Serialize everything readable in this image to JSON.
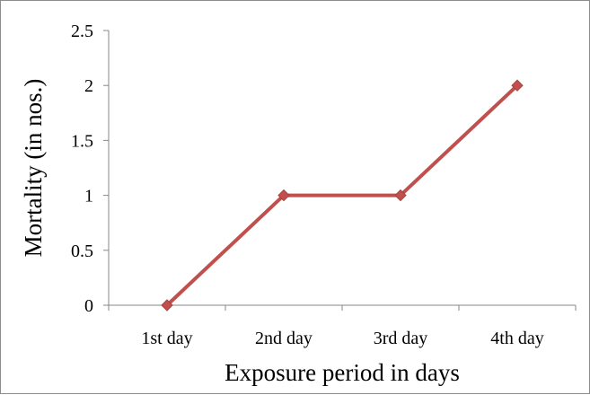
{
  "chart_data": {
    "type": "line",
    "title": "",
    "xlabel": "Exposure period in days",
    "ylabel": "Mortality (in nos.)",
    "categories": [
      "1st day",
      "2nd day",
      "3rd day",
      "4th day"
    ],
    "series": [
      {
        "values": [
          0,
          1,
          1,
          2
        ],
        "color": "#c0504d",
        "marker": "diamond"
      }
    ],
    "ylim": [
      0,
      2.5
    ],
    "yticks": [
      "0",
      "0.5",
      "1",
      "1.5",
      "2",
      "2.5"
    ],
    "grid": false,
    "legend": "none"
  }
}
